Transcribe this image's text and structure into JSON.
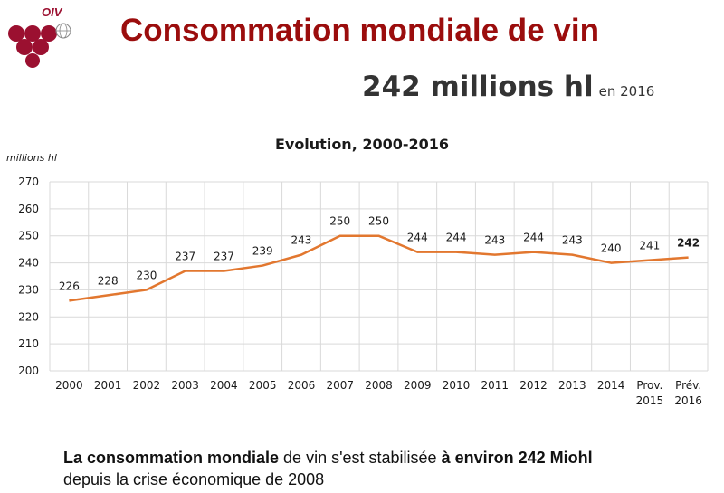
{
  "logo": {
    "text": "OIV"
  },
  "header": {
    "title": "Consommation mondiale de vin",
    "headline_value": "242 millions hl",
    "headline_suffix": "en 2016"
  },
  "footer": {
    "part1": "La consommation mondiale",
    "part2": " de vin s'est stabilisée ",
    "part3": "à environ 242 Miohl",
    "line2": "depuis la crise économique de 2008"
  },
  "colors": {
    "line": "#e2772f",
    "title": "#9b0d0d",
    "logo": "#9b1030"
  },
  "chart_data": {
    "type": "line",
    "title": "Evolution, 2000-2016",
    "ylabel": "millions hl",
    "xlabel": "",
    "categories": [
      "2000",
      "2001",
      "2002",
      "2003",
      "2004",
      "2005",
      "2006",
      "2007",
      "2008",
      "2009",
      "2010",
      "2011",
      "2012",
      "2013",
      "2014",
      "Prov. 2015",
      "Prév. 2016"
    ],
    "values": [
      226,
      228,
      230,
      237,
      237,
      239,
      243,
      250,
      250,
      244,
      244,
      243,
      244,
      243,
      240,
      241,
      242
    ],
    "ylim": [
      200,
      270
    ],
    "yticks": [
      200,
      210,
      220,
      230,
      240,
      250,
      260,
      270
    ],
    "grid": true,
    "legend": "none"
  }
}
